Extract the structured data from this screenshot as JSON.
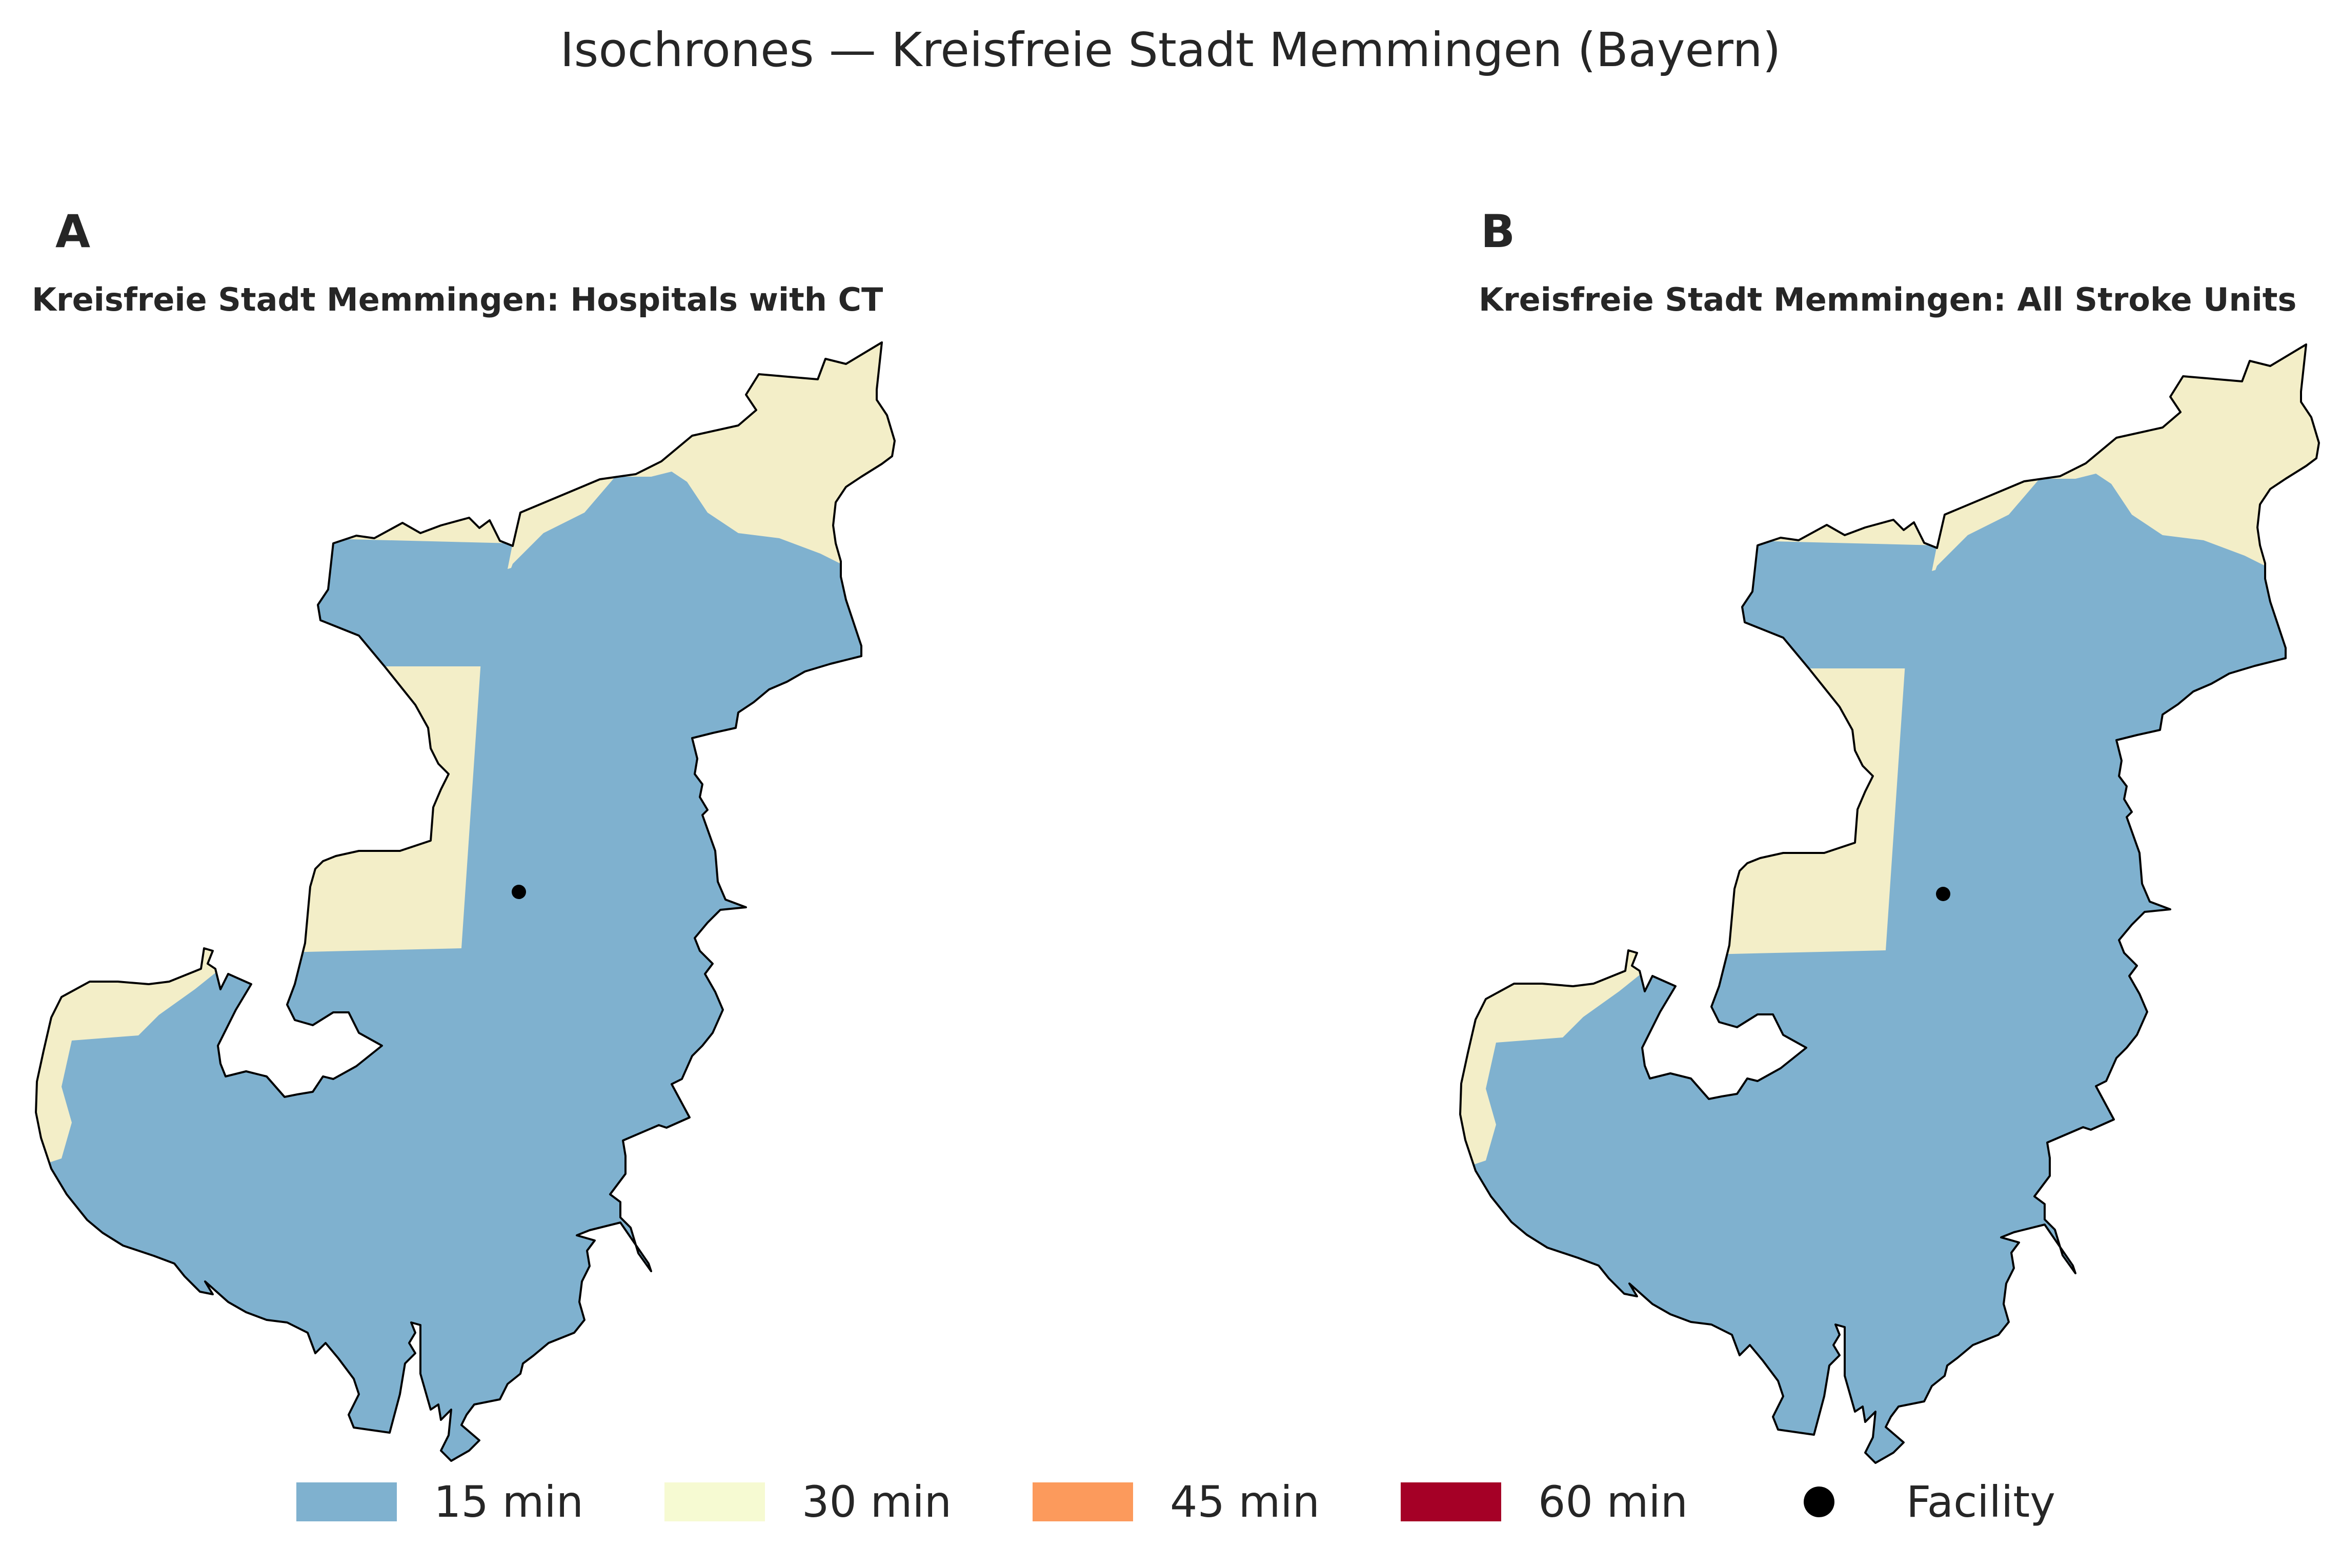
{
  "figure": {
    "title": "Isochrones — Kreisfreie Stadt Memmingen (Bayern)"
  },
  "panels": [
    {
      "letter": "A",
      "title": "Kreisfreie Stadt Memmingen: Hospitals with CT"
    },
    {
      "letter": "B",
      "title": "Kreisfreie Stadt Memmingen: All Stroke Units"
    }
  ],
  "legend": {
    "items": [
      {
        "label": "15 min",
        "color": "#7fb1cf"
      },
      {
        "label": "30 min",
        "color": "#f6fad2"
      },
      {
        "label": "45 min",
        "color": "#fc9a5c"
      },
      {
        "label": "60 min",
        "color": "#a50026"
      }
    ],
    "facility_label": "Facility"
  },
  "map_colors": {
    "zone_15": "#7fb1cf",
    "zone_30": "#f3eec8",
    "outline": "#000000",
    "facility": "#000000"
  }
}
